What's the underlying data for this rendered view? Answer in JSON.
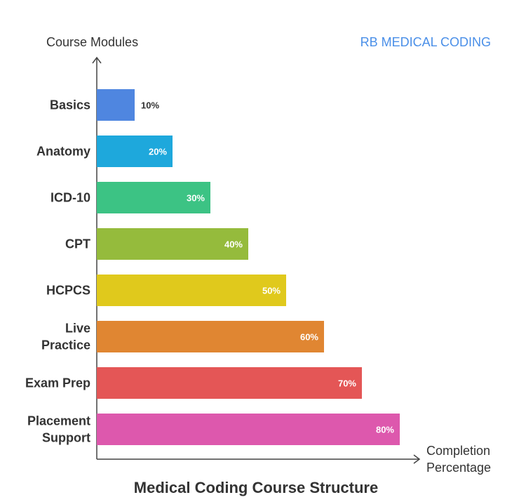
{
  "brand_label": "RB MEDICAL CODING",
  "colors": {
    "brand": "#4a8fe8",
    "axis": "#444444",
    "text": "#333333",
    "bar_label_light": "#ffffff",
    "bar_label_dark": "#333333"
  },
  "chart_data": {
    "type": "bar",
    "orientation": "horizontal",
    "title": "Medical Coding Course Structure",
    "xlabel": [
      "Completion",
      "Percentage"
    ],
    "ylabel": "Course Modules",
    "xlim": [
      0,
      100
    ],
    "grid": false,
    "legend": "none",
    "categories": [
      [
        "Basics"
      ],
      [
        "Anatomy"
      ],
      [
        "ICD-10"
      ],
      [
        "CPT"
      ],
      [
        "HCPCS"
      ],
      [
        "Live",
        "Practice"
      ],
      [
        "Exam Prep"
      ],
      [
        "Placement",
        "Support"
      ]
    ],
    "values": [
      10,
      20,
      30,
      40,
      50,
      60,
      70,
      80
    ],
    "data_labels": [
      "10%",
      "20%",
      "30%",
      "40%",
      "50%",
      "60%",
      "70%",
      "80%"
    ],
    "bar_colors": [
      "#4f86e0",
      "#1ea8dc",
      "#3cc384",
      "#95bb3c",
      "#e0c91c",
      "#e08632",
      "#e45656",
      "#dd58ad"
    ]
  }
}
